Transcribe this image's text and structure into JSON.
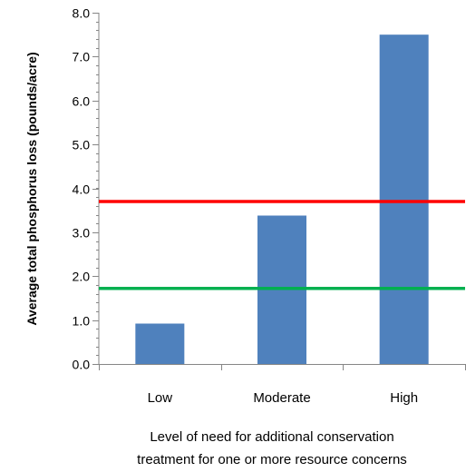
{
  "chart_data": {
    "type": "bar",
    "categories": [
      "Low",
      "Moderate",
      "High"
    ],
    "values": [
      0.92,
      3.38,
      7.5
    ],
    "bar_color": "#4f81bd",
    "ylabel": "Average total phosphorus loss (pounds/acre)",
    "xlabel_lines": [
      "Level of need for additional conservation",
      "treatment for one or more resource concerns"
    ],
    "ylim": [
      0,
      8
    ],
    "yticks": [
      "0.0",
      "1.0",
      "2.0",
      "3.0",
      "4.0",
      "5.0",
      "6.0",
      "7.0",
      "8.0"
    ],
    "reference_lines": [
      {
        "value": 3.7,
        "color": "#ff0000"
      },
      {
        "value": 1.72,
        "color": "#00b050"
      }
    ],
    "grid": false,
    "legend": "none"
  }
}
